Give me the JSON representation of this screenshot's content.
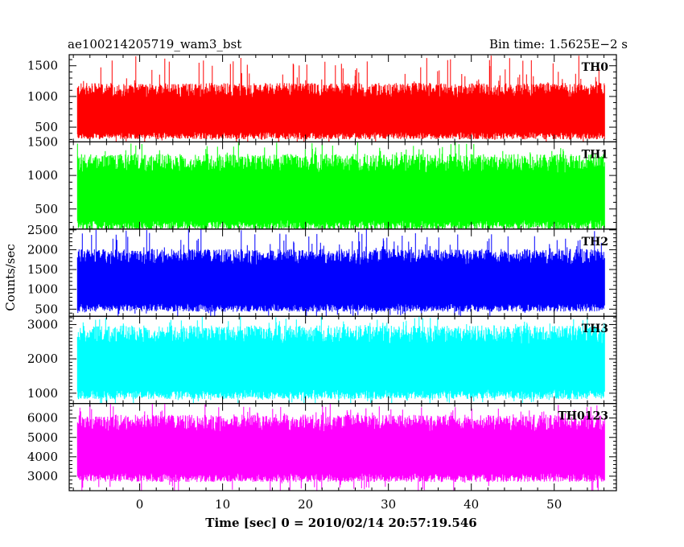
{
  "header": {
    "title": "ae100214205719_wam3_bst",
    "bin_time": "Bin time: 1.5625E−2 s"
  },
  "chart_data": {
    "type": "line",
    "xlabel": "Time [sec] 0 = 2010/02/14 20:57:19.546",
    "ylabel": "Counts/sec",
    "xlim": [
      -8.5,
      57.5
    ],
    "x_ticks": [
      0,
      10,
      20,
      30,
      40,
      50
    ],
    "data_x_range": [
      -7.5,
      56.1
    ],
    "grid": false,
    "panels": [
      {
        "name": "TH0",
        "color": "#ff0000",
        "ylim": [
          260,
          1680
        ],
        "ticks": [
          500,
          1000,
          1500
        ],
        "band": [
          420,
          1080
        ],
        "spike_max": 1680
      },
      {
        "name": "TH1",
        "color": "#00ff00",
        "ylim": [
          200,
          1500
        ],
        "ticks": [
          500,
          1000,
          1500
        ],
        "band": [
          330,
          1150
        ],
        "spike_max": 1500
      },
      {
        "name": "TH2",
        "color": "#0000ff",
        "ylim": [
          320,
          2520
        ],
        "ticks": [
          500,
          1000,
          1500,
          2000,
          2500
        ],
        "band": [
          640,
          1780
        ],
        "spike_max": 2520
      },
      {
        "name": "TH3",
        "color": "#00ffff",
        "ylim": [
          700,
          3240
        ],
        "ticks": [
          1000,
          2000,
          3000
        ],
        "band": [
          1100,
          2650
        ],
        "spike_max": 3240
      },
      {
        "name": "TH0123",
        "color": "#ff00ff",
        "ylim": [
          2250,
          6750
        ],
        "ticks": [
          3000,
          4000,
          5000,
          6000
        ],
        "band": [
          3150,
          5650
        ],
        "spike_max": 6750
      }
    ]
  }
}
